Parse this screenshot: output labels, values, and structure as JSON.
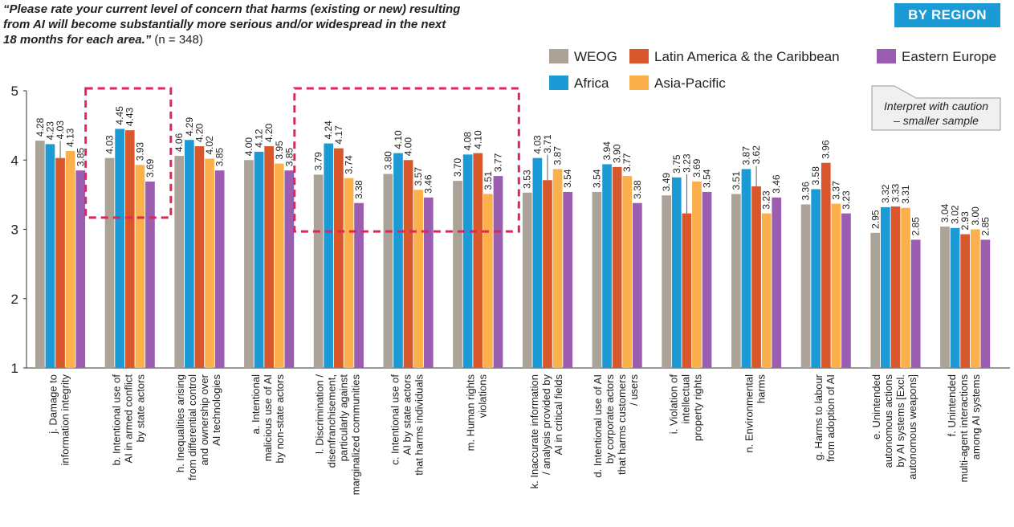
{
  "question": {
    "text": "“Please rate your current level of concern that harms (existing or new) resulting from AI will become substantially more serious and/or widespread in the next 18 months for each area.”",
    "n": " (n = 348)"
  },
  "badge": "BY REGION",
  "caution_note": [
    "Interpret with caution",
    "– smaller sample"
  ],
  "chart_data": {
    "type": "bar",
    "ylim": [
      1,
      5
    ],
    "yticks": [
      "1",
      "2",
      "3",
      "4",
      "5"
    ],
    "series": [
      {
        "name": "WEOG",
        "color": "#aba298",
        "values": [
          4.28,
          4.03,
          4.06,
          4.0,
          3.79,
          3.8,
          3.7,
          3.53,
          3.54,
          3.49,
          3.51,
          3.36,
          2.95,
          3.04
        ]
      },
      {
        "name": "Africa",
        "color": "#1b9ad6",
        "values": [
          4.23,
          4.45,
          4.29,
          4.12,
          4.24,
          4.1,
          4.08,
          4.03,
          3.94,
          3.75,
          3.87,
          3.58,
          3.32,
          3.02
        ]
      },
      {
        "name": "Latin America & the Caribbean",
        "color": "#d9582b",
        "values": [
          4.03,
          4.43,
          4.2,
          4.2,
          4.17,
          4.0,
          4.1,
          3.71,
          3.9,
          3.23,
          3.62,
          3.96,
          3.33,
          2.93
        ]
      },
      {
        "name": "Asia-Pacific",
        "color": "#fbb04b",
        "values": [
          4.13,
          3.93,
          4.02,
          3.95,
          3.74,
          3.57,
          3.51,
          3.87,
          3.77,
          3.69,
          3.23,
          3.37,
          3.31,
          3.0
        ]
      },
      {
        "name": "Eastern Europe",
        "color": "#9b5db0",
        "values": [
          3.85,
          3.69,
          3.85,
          3.85,
          3.38,
          3.46,
          3.77,
          3.54,
          3.38,
          3.54,
          3.46,
          3.23,
          2.85,
          2.85
        ]
      }
    ],
    "labels": [
      [
        "4.28",
        "4.23",
        "4.03",
        "4.13",
        "3.85"
      ],
      [
        "4.03",
        "4.45",
        "4.43",
        "3.93",
        "3.69"
      ],
      [
        "4.06",
        "4.29",
        "4.20",
        "4.02",
        "3.85"
      ],
      [
        "4.00",
        "4.12",
        "4.20",
        "3.95",
        "3.85"
      ],
      [
        "3.79",
        "4.24",
        "4.17",
        "3.74",
        "3.38"
      ],
      [
        "3.80",
        "4.10",
        "4.00",
        "3.57",
        "3.46"
      ],
      [
        "3.70",
        "4.08",
        "4.10",
        "3.51",
        "3.77"
      ],
      [
        "3.53",
        "4.03",
        "3.71",
        "3.87",
        "3.54"
      ],
      [
        "3.54",
        "3.94",
        "3.90",
        "3.77",
        "3.38"
      ],
      [
        "3.49",
        "3.75",
        "3.23",
        "3.69",
        "3.54"
      ],
      [
        "3.51",
        "3.87",
        "3.62",
        "3.23",
        "3.46"
      ],
      [
        "3.36",
        "3.58",
        "3.96",
        "3.37",
        "3.23"
      ],
      [
        "2.95",
        "3.32",
        "3.33",
        "3.31",
        "2.85"
      ],
      [
        "3.04",
        "3.02",
        "2.93",
        "3.00",
        "2.85"
      ]
    ],
    "categories": [
      [
        "j. Damage to",
        "information integrity"
      ],
      [
        "b. Intentional use of",
        "AI in armed conflict",
        "by state actors"
      ],
      [
        "h. Inequalities arising",
        "from differential control",
        "and ownership over",
        "AI technologies"
      ],
      [
        "a. Intentional",
        "malicious use of AI",
        "by non-state actors"
      ],
      [
        "l. Discrimination /",
        "disenfranchisement,",
        "particularly against",
        "marginalized communities"
      ],
      [
        "c. Intentional use of",
        "AI by state actors",
        "that harms individuals"
      ],
      [
        "m. Human rights",
        "violations"
      ],
      [
        "k. Inaccurate information",
        "/ analysis provided by",
        "AI in critical fields"
      ],
      [
        "d. Intentional use of AI",
        "by corporate actors",
        "that harms customers",
        "/ users"
      ],
      [
        "i. Violation of",
        "intellectual",
        "property rights"
      ],
      [
        "n. Environmental",
        "harms"
      ],
      [
        "g. Harms to labour",
        "from adoption of AI"
      ],
      [
        "e. Unintended",
        "autonomous actions",
        "by AI systems [Excl.",
        "autonomous weapons]"
      ],
      [
        "f. Unintended",
        "multi-agent interactions",
        "among AI systems"
      ]
    ],
    "highlight_groups": [
      [
        1
      ],
      [
        4,
        6
      ]
    ],
    "legend": "top-right",
    "grid": false
  }
}
